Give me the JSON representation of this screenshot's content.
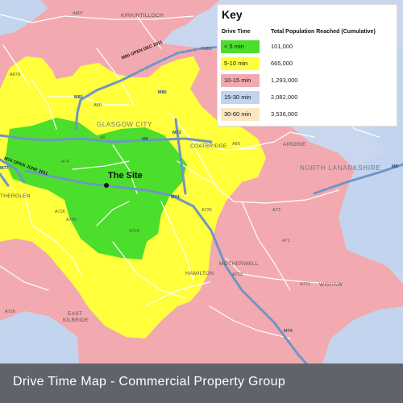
{
  "colors": {
    "sea": "#c8d6ee",
    "land": "#f3a9b0",
    "zone_under_5": "#4cde2c",
    "zone_5_10": "#ffff3c",
    "zone_10_15": "#f3a9b0",
    "zone_15_30": "#c2d4ee",
    "zone_30_60": "#fde6c2",
    "motorway": "#6f95c6",
    "road": "#ffffff",
    "caption_bg": "#3a3a3a"
  },
  "key": {
    "title": "Key",
    "col_drive_time": "Drive Time",
    "col_population": "Total Population Reached (Cumulative)",
    "rows": [
      {
        "label": "< 5 min",
        "value": "101,000",
        "color": "#4cde2c"
      },
      {
        "label": "5-10 min",
        "value": "665,000",
        "color": "#ffff3c"
      },
      {
        "label": "10-15 min",
        "value": "1,293,000",
        "color": "#f3a9b0"
      },
      {
        "label": "15-30 min",
        "value": "2,082,000",
        "color": "#c2d4ee"
      },
      {
        "label": "30-60 min",
        "value": "3,536,000",
        "color": "#fde6c2"
      }
    ]
  },
  "site": {
    "label": "The Site"
  },
  "places": {
    "kirkintilloch": "KIRKINTILLOCH",
    "glasgow_city": "GLASGOW CITY",
    "coatbridge": "COATBRIDGE",
    "airdrie": "AIRDRIE",
    "north_lanarkshire": "NORTH LANARKSHIRE",
    "motherwell": "MOTHERWELL",
    "hamilton": "HAMILTON",
    "wishaw": "WISHAW",
    "east_kilbride_1": "EAST",
    "east_kilbride_2": "KILBRIDE",
    "rutherglen": "THERGLEN"
  },
  "roads": {
    "a807": "A807",
    "a803": "A803",
    "a879": "A879",
    "m80_top": "M80",
    "m80_mid": "M80",
    "a80": "A80",
    "a8": "A8",
    "m8": "M8",
    "m73": "M73",
    "a89": "A89",
    "a74": "A74",
    "m74": "M74",
    "a725": "A725",
    "a721": "A721",
    "a723": "A723",
    "a73": "A73",
    "a724": "A724",
    "a726": "A726",
    "a749": "A749",
    "m77": "M77",
    "m8_east": "M8",
    "m74_south": "M74",
    "a71": "A71",
    "a726_south": "A726"
  },
  "motorway_notes": {
    "m80_open": "M80 OPEN DEC 2011",
    "m74_open": "M74 OPEN JUNE 2011"
  },
  "caption": "Drive Time Map - Commercial Property Group"
}
